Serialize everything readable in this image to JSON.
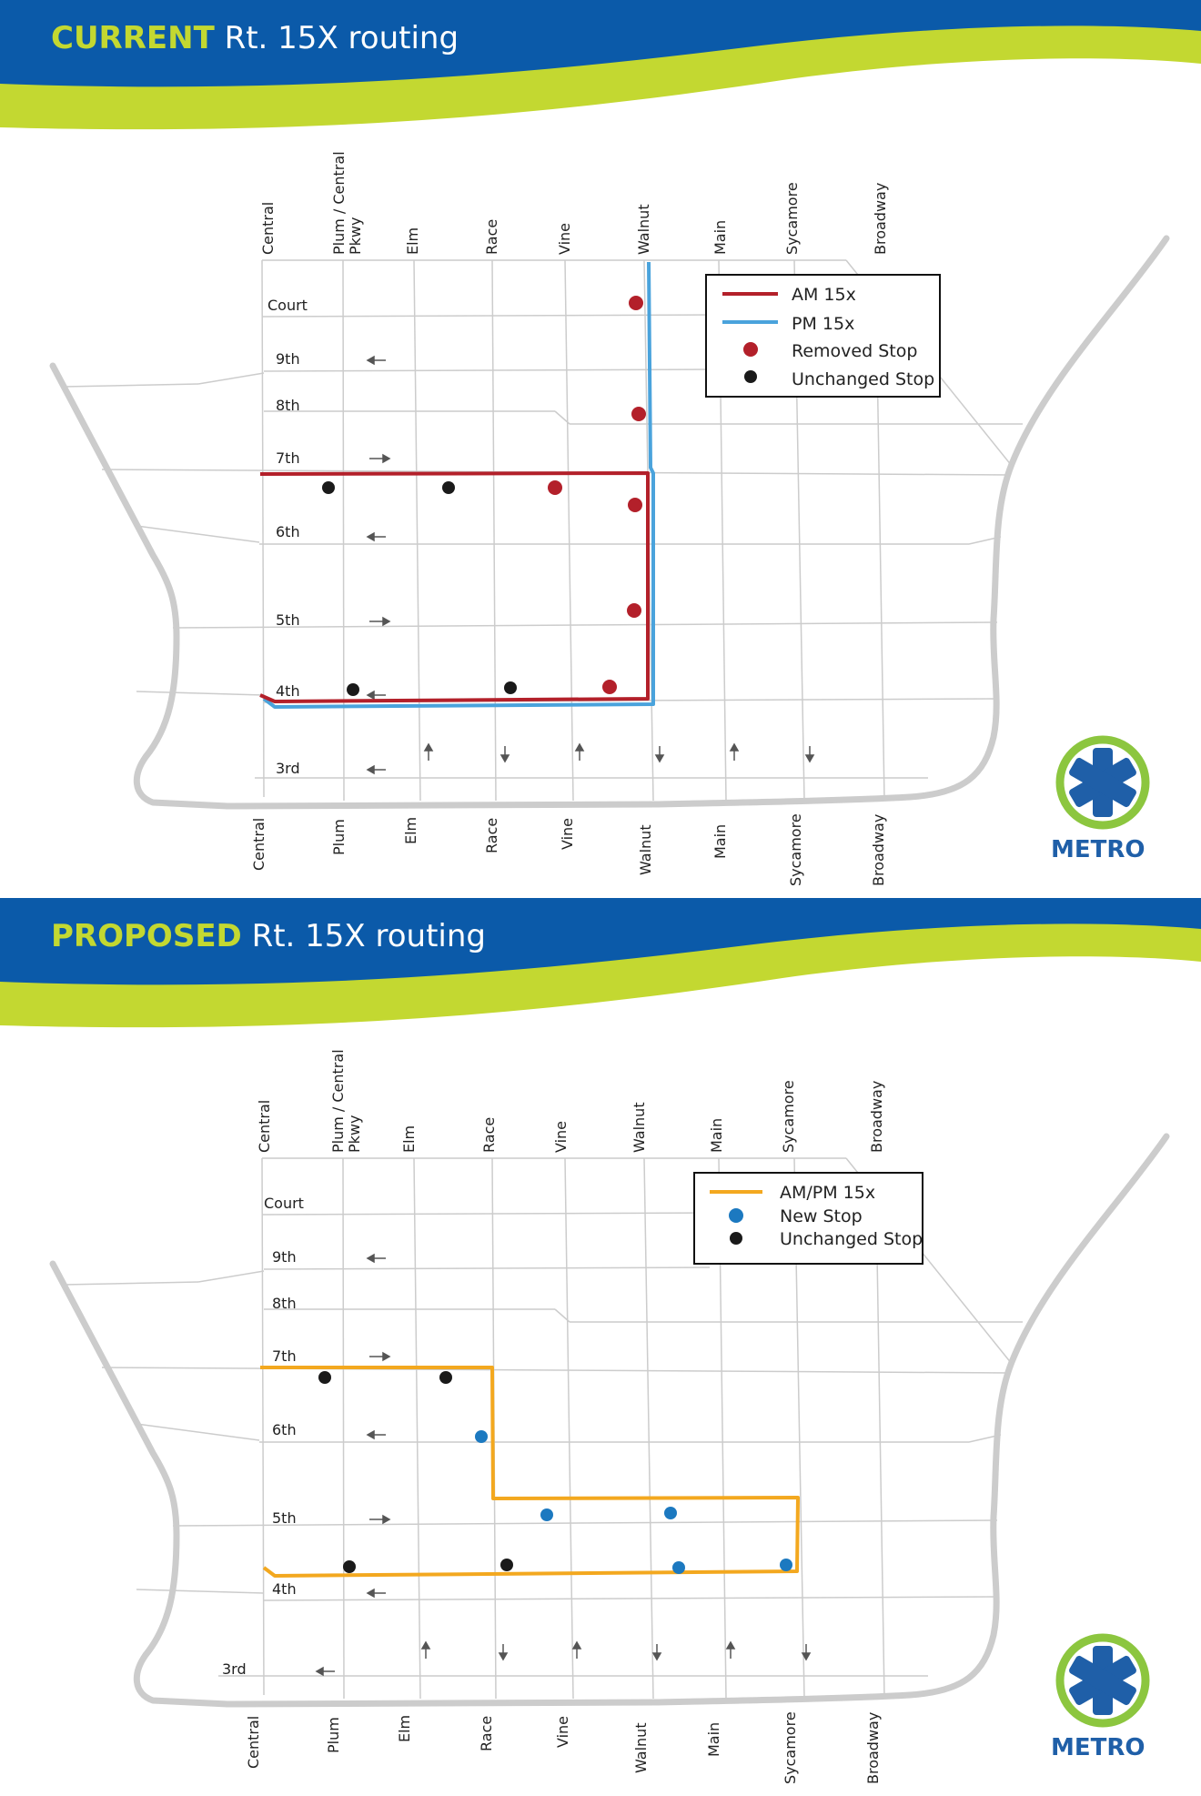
{
  "colors": {
    "banner_blue": "#0b5aa9",
    "banner_green": "#c3d831",
    "street_grey": "#cccccc",
    "am_red": "#b3202a",
    "pm_blue": "#4aa3dc",
    "ampm_orange": "#f3a81f",
    "removed_stop": "#b3202a",
    "unchanged_stop": "#1a1a1a",
    "new_stop": "#1c79c0"
  },
  "logo": {
    "text": "METRO",
    "icon": "metro-star-logo-icon"
  },
  "panels": [
    {
      "id": "current",
      "title_keyword": "CURRENT",
      "title_rest": " Rt. 15X routing",
      "top_streets": [
        "Central",
        "Plum / Central",
        "Pkwy",
        "Elm",
        "Race",
        "Vine",
        "Walnut",
        "Main",
        "Sycamore",
        "Broadway"
      ],
      "bottom_streets": [
        "Central",
        "Plum",
        "Elm",
        "Race",
        "Vine",
        "Walnut",
        "Main",
        "Sycamore",
        "Broadway"
      ],
      "cross_streets": [
        "Court",
        "9th",
        "8th",
        "7th",
        "6th",
        "5th",
        "4th",
        "3rd"
      ],
      "legend": [
        {
          "label": "AM 15x",
          "symbol": "line",
          "color": "#b3202a"
        },
        {
          "label": "PM 15x",
          "symbol": "line",
          "color": "#4aa3dc"
        },
        {
          "label": "Removed Stop",
          "symbol": "dot",
          "color": "#b3202a"
        },
        {
          "label": "Unchanged Stop",
          "symbol": "dot",
          "color": "#1a1a1a"
        }
      ]
    },
    {
      "id": "proposed",
      "title_keyword": "PROPOSED",
      "title_rest": " Rt. 15X routing",
      "top_streets": [
        "Central",
        "Plum / Central",
        "Pkwy",
        "Elm",
        "Race",
        "Vine",
        "Walnut",
        "Main",
        "Sycamore",
        "Broadway"
      ],
      "bottom_streets": [
        "Central",
        "Plum",
        "Elm",
        "Race",
        "Vine",
        "Walnut",
        "Main",
        "Sycamore",
        "Broadway"
      ],
      "cross_streets": [
        "Court",
        "9th",
        "8th",
        "7th",
        "6th",
        "5th",
        "4th",
        "3rd"
      ],
      "legend": [
        {
          "label": "AM/PM 15x",
          "symbol": "line",
          "color": "#f3a81f"
        },
        {
          "label": "New Stop",
          "symbol": "dot",
          "color": "#1c79c0"
        },
        {
          "label": "Unchanged Stop",
          "symbol": "dot",
          "color": "#1a1a1a"
        }
      ]
    }
  ]
}
